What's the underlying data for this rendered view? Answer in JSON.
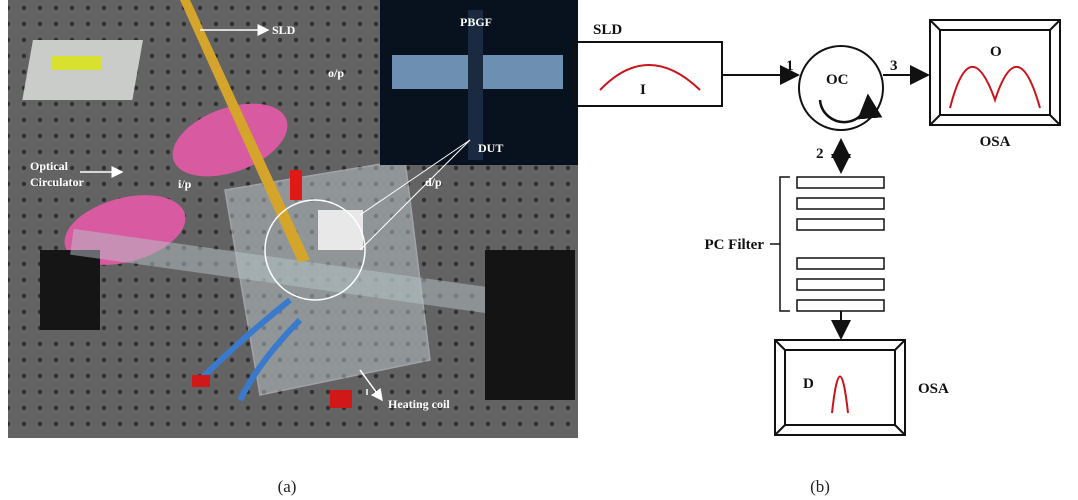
{
  "panel_a": {
    "sld": "SLD",
    "pbgf": "PBGF",
    "output": "o/p",
    "dut": "DUT",
    "optical_circulator": [
      "Optical",
      "Circulator"
    ],
    "input": "i/p",
    "drop": "d/p",
    "heating_coil": "Heating coil",
    "caption": "(a)"
  },
  "panel_b": {
    "sld": "SLD",
    "input_spectrum": "I",
    "port_1": "1",
    "circulator": "OC",
    "port_3": "3",
    "output_spectrum": "O",
    "osa_top": "OSA",
    "port_2": "2",
    "pc_filter": "PC Filter",
    "drop_spectrum": "D",
    "osa_bottom": "OSA",
    "caption": "(b)"
  }
}
